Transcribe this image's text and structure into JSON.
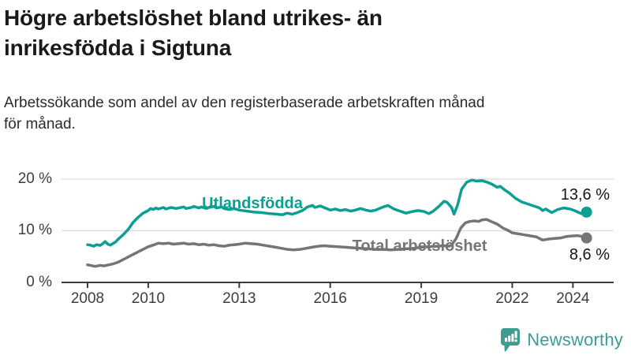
{
  "chart_data": {
    "type": "line",
    "title_lines": [
      "Högre arbetslöshet bland utrikes- än",
      "inrikesfödda i Sigtuna"
    ],
    "subtitle_lines": [
      "Arbetssökande som andel av den registerbaserade arbetskraften månad",
      "för månad."
    ],
    "unit": "%",
    "x_axis": {
      "tick_labels": [
        "2008",
        "2010",
        "2013",
        "2016",
        "2019",
        "2022",
        "2024"
      ],
      "tick_years": [
        2008,
        2010,
        2013,
        2016,
        2019,
        2022,
        2024
      ],
      "range": [
        2008,
        2024.5
      ]
    },
    "y_axis": {
      "tick_labels": [
        "20 %",
        "10 %",
        "0 %"
      ],
      "tick_values": [
        20,
        10,
        0
      ],
      "range": [
        0,
        22
      ],
      "gridline_values": [
        10,
        20
      ]
    },
    "legend_position": "inline-labels",
    "grid": "horizontal",
    "series": [
      {
        "name": "Utlandsfödda",
        "color": "#0b9f94",
        "end_label": "13,6 %",
        "end_value": 13.6,
        "points": [
          [
            2008.0,
            7.3
          ],
          [
            2008.1,
            7.2
          ],
          [
            2008.2,
            7.0
          ],
          [
            2008.3,
            7.3
          ],
          [
            2008.42,
            7.15
          ],
          [
            2008.5,
            7.5
          ],
          [
            2008.58,
            7.9
          ],
          [
            2008.67,
            7.4
          ],
          [
            2008.75,
            7.2
          ],
          [
            2008.83,
            7.5
          ],
          [
            2008.92,
            7.8
          ],
          [
            2009.0,
            8.3
          ],
          [
            2009.17,
            9.2
          ],
          [
            2009.33,
            10.2
          ],
          [
            2009.5,
            11.6
          ],
          [
            2009.67,
            12.6
          ],
          [
            2009.83,
            13.4
          ],
          [
            2010.0,
            13.9
          ],
          [
            2010.08,
            14.3
          ],
          [
            2010.17,
            14.1
          ],
          [
            2010.25,
            14.4
          ],
          [
            2010.33,
            14.2
          ],
          [
            2010.5,
            14.5
          ],
          [
            2010.58,
            14.2
          ],
          [
            2010.75,
            14.5
          ],
          [
            2010.92,
            14.3
          ],
          [
            2011.0,
            14.4
          ],
          [
            2011.17,
            14.6
          ],
          [
            2011.25,
            14.3
          ],
          [
            2011.42,
            14.5
          ],
          [
            2011.5,
            14.7
          ],
          [
            2011.67,
            14.4
          ],
          [
            2011.75,
            14.6
          ],
          [
            2011.92,
            14.3
          ],
          [
            2012.0,
            14.5
          ],
          [
            2012.17,
            14.7
          ],
          [
            2012.25,
            14.4
          ],
          [
            2012.42,
            14.6
          ],
          [
            2012.5,
            14.3
          ],
          [
            2012.67,
            14.1
          ],
          [
            2012.83,
            14.3
          ],
          [
            2013.0,
            14.0
          ],
          [
            2013.25,
            13.8
          ],
          [
            2013.5,
            13.6
          ],
          [
            2013.75,
            13.5
          ],
          [
            2014.0,
            13.3
          ],
          [
            2014.25,
            13.2
          ],
          [
            2014.42,
            13.1
          ],
          [
            2014.58,
            13.4
          ],
          [
            2014.75,
            13.2
          ],
          [
            2014.92,
            13.5
          ],
          [
            2015.08,
            13.9
          ],
          [
            2015.25,
            14.6
          ],
          [
            2015.42,
            14.9
          ],
          [
            2015.5,
            14.5
          ],
          [
            2015.67,
            14.8
          ],
          [
            2015.83,
            14.4
          ],
          [
            2016.0,
            14.0
          ],
          [
            2016.17,
            14.2
          ],
          [
            2016.33,
            13.9
          ],
          [
            2016.5,
            14.1
          ],
          [
            2016.67,
            13.8
          ],
          [
            2016.83,
            14.0
          ],
          [
            2017.0,
            14.3
          ],
          [
            2017.17,
            14.0
          ],
          [
            2017.33,
            13.8
          ],
          [
            2017.5,
            14.0
          ],
          [
            2017.75,
            14.6
          ],
          [
            2017.9,
            14.9
          ],
          [
            2018.1,
            14.2
          ],
          [
            2018.3,
            13.8
          ],
          [
            2018.5,
            13.4
          ],
          [
            2018.7,
            13.7
          ],
          [
            2018.9,
            13.9
          ],
          [
            2019.1,
            13.7
          ],
          [
            2019.25,
            13.3
          ],
          [
            2019.4,
            13.8
          ],
          [
            2019.6,
            14.8
          ],
          [
            2019.75,
            15.7
          ],
          [
            2019.85,
            15.5
          ],
          [
            2020.0,
            14.5
          ],
          [
            2020.08,
            13.2
          ],
          [
            2020.2,
            15.0
          ],
          [
            2020.33,
            18.0
          ],
          [
            2020.5,
            19.4
          ],
          [
            2020.67,
            19.8
          ],
          [
            2020.83,
            19.6
          ],
          [
            2021.0,
            19.7
          ],
          [
            2021.17,
            19.4
          ],
          [
            2021.33,
            19.0
          ],
          [
            2021.5,
            18.4
          ],
          [
            2021.6,
            18.6
          ],
          [
            2021.75,
            17.9
          ],
          [
            2021.9,
            17.3
          ],
          [
            2022.1,
            16.3
          ],
          [
            2022.3,
            15.6
          ],
          [
            2022.5,
            15.2
          ],
          [
            2022.7,
            14.8
          ],
          [
            2022.9,
            14.4
          ],
          [
            2023.0,
            13.9
          ],
          [
            2023.1,
            14.2
          ],
          [
            2023.3,
            13.5
          ],
          [
            2023.5,
            14.1
          ],
          [
            2023.7,
            14.4
          ],
          [
            2023.9,
            14.2
          ],
          [
            2024.05,
            13.9
          ],
          [
            2024.2,
            13.5
          ],
          [
            2024.33,
            13.2
          ],
          [
            2024.45,
            13.6
          ]
        ]
      },
      {
        "name": "Total arbetslöshet",
        "color": "#757575",
        "end_label": "8,6 %",
        "end_value": 8.6,
        "points": [
          [
            2008.0,
            3.4
          ],
          [
            2008.1,
            3.3
          ],
          [
            2008.25,
            3.1
          ],
          [
            2008.4,
            3.3
          ],
          [
            2008.55,
            3.2
          ],
          [
            2008.7,
            3.4
          ],
          [
            2008.85,
            3.6
          ],
          [
            2009.0,
            3.9
          ],
          [
            2009.2,
            4.5
          ],
          [
            2009.4,
            5.1
          ],
          [
            2009.6,
            5.7
          ],
          [
            2009.8,
            6.3
          ],
          [
            2010.0,
            6.9
          ],
          [
            2010.2,
            7.3
          ],
          [
            2010.33,
            7.6
          ],
          [
            2010.5,
            7.5
          ],
          [
            2010.67,
            7.6
          ],
          [
            2010.83,
            7.4
          ],
          [
            2011.0,
            7.5
          ],
          [
            2011.17,
            7.6
          ],
          [
            2011.33,
            7.4
          ],
          [
            2011.5,
            7.5
          ],
          [
            2011.67,
            7.3
          ],
          [
            2011.83,
            7.4
          ],
          [
            2012.0,
            7.2
          ],
          [
            2012.17,
            7.3
          ],
          [
            2012.33,
            7.1
          ],
          [
            2012.5,
            7.0
          ],
          [
            2012.67,
            7.2
          ],
          [
            2012.83,
            7.3
          ],
          [
            2013.0,
            7.4
          ],
          [
            2013.2,
            7.6
          ],
          [
            2013.4,
            7.5
          ],
          [
            2013.6,
            7.4
          ],
          [
            2013.8,
            7.2
          ],
          [
            2014.0,
            7.0
          ],
          [
            2014.2,
            6.8
          ],
          [
            2014.4,
            6.6
          ],
          [
            2014.6,
            6.4
          ],
          [
            2014.8,
            6.3
          ],
          [
            2015.0,
            6.4
          ],
          [
            2015.2,
            6.6
          ],
          [
            2015.4,
            6.8
          ],
          [
            2015.6,
            7.0
          ],
          [
            2015.8,
            7.1
          ],
          [
            2016.0,
            7.0
          ],
          [
            2016.25,
            6.9
          ],
          [
            2016.5,
            6.8
          ],
          [
            2016.75,
            6.7
          ],
          [
            2017.0,
            6.6
          ],
          [
            2017.25,
            6.5
          ],
          [
            2017.5,
            6.4
          ],
          [
            2017.75,
            6.4
          ],
          [
            2018.0,
            6.3
          ],
          [
            2018.25,
            6.4
          ],
          [
            2018.5,
            6.5
          ],
          [
            2018.75,
            6.6
          ],
          [
            2019.0,
            6.8
          ],
          [
            2019.25,
            6.9
          ],
          [
            2019.5,
            7.0
          ],
          [
            2019.75,
            7.1
          ],
          [
            2019.9,
            7.0
          ],
          [
            2020.0,
            7.2
          ],
          [
            2020.15,
            8.5
          ],
          [
            2020.3,
            10.5
          ],
          [
            2020.45,
            11.5
          ],
          [
            2020.6,
            11.8
          ],
          [
            2020.75,
            11.9
          ],
          [
            2020.9,
            11.8
          ],
          [
            2021.0,
            12.1
          ],
          [
            2021.15,
            12.2
          ],
          [
            2021.3,
            11.8
          ],
          [
            2021.5,
            11.3
          ],
          [
            2021.7,
            10.5
          ],
          [
            2021.85,
            10.1
          ],
          [
            2022.0,
            9.6
          ],
          [
            2022.2,
            9.4
          ],
          [
            2022.4,
            9.2
          ],
          [
            2022.6,
            9.0
          ],
          [
            2022.8,
            8.8
          ],
          [
            2023.0,
            8.2
          ],
          [
            2023.2,
            8.4
          ],
          [
            2023.4,
            8.5
          ],
          [
            2023.6,
            8.6
          ],
          [
            2023.8,
            8.9
          ],
          [
            2024.0,
            9.0
          ],
          [
            2024.15,
            9.05
          ],
          [
            2024.3,
            8.9
          ],
          [
            2024.45,
            8.6
          ]
        ]
      }
    ]
  },
  "colors": {
    "grid": "#e0e0e0",
    "axis": "#3c3c3c",
    "tick_text": "#3d3d3d",
    "title_text": "#1a1a1a",
    "brand": "#3f9c90"
  },
  "footer": {
    "brand": "Newsworthy"
  }
}
